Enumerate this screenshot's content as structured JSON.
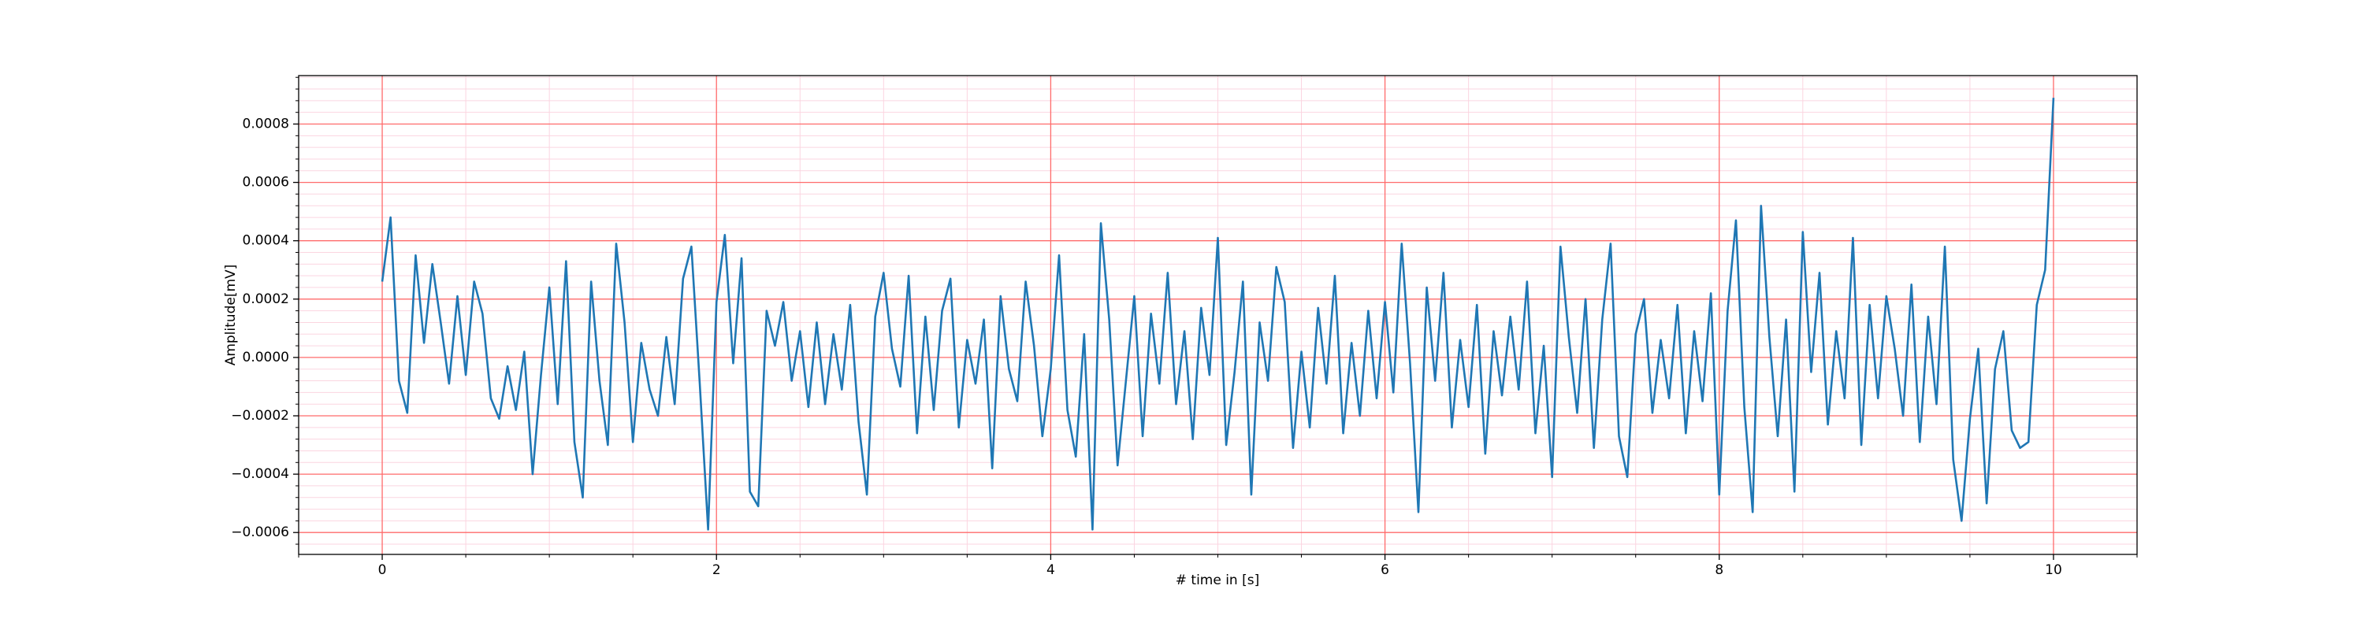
{
  "chart_data": {
    "type": "line",
    "xlabel": "# time in [s]",
    "ylabel": "Amplitude[mV]",
    "color": "#1f77b4",
    "grid": true,
    "grid_color": "#ff6b6b",
    "minor_grid_color": "#fbd5e0",
    "xlim": [
      -0.5,
      10.5
    ],
    "ylim": [
      -0.000675,
      0.000966
    ],
    "xticks": [
      0,
      2,
      4,
      6,
      8,
      10
    ],
    "yticks": [
      {
        "value": -0.0006,
        "label": "−0.0006"
      },
      {
        "value": -0.0004,
        "label": "−0.0004"
      },
      {
        "value": -0.0002,
        "label": "−0.0002"
      },
      {
        "value": 0,
        "label": "0.0000"
      },
      {
        "value": 0.0002,
        "label": "0.0002"
      },
      {
        "value": 0.0004,
        "label": "0.0004"
      },
      {
        "value": 0.0006,
        "label": "0.0006"
      },
      {
        "value": 0.0008,
        "label": "0.0008"
      }
    ],
    "xminorticks": [
      -0.5,
      0.5,
      1,
      1.5,
      2.5,
      3,
      3.5,
      4.5,
      5,
      5.5,
      6.5,
      7,
      7.5,
      8.5,
      9,
      9.5,
      10.5
    ],
    "yminorticks": [
      -0.00064,
      -0.00056,
      -0.00052,
      -0.00048,
      -0.00044,
      -0.00036,
      -0.00032,
      -0.00028,
      -0.00024,
      -0.00016,
      -0.00012,
      -8e-05,
      -4e-05,
      4e-05,
      8e-05,
      0.00012,
      0.00016,
      0.00024,
      0.00028,
      0.00032,
      0.00036,
      0.00044,
      0.00048,
      0.00052,
      0.00056,
      0.00064,
      0.00068,
      0.00072,
      0.00076,
      0.00084,
      0.00088,
      0.00092,
      0.00096
    ],
    "x": [
      0,
      0.05,
      0.1,
      0.15,
      0.2,
      0.25,
      0.3,
      0.35,
      0.4,
      0.45,
      0.5,
      0.55,
      0.6,
      0.65,
      0.7,
      0.75,
      0.8,
      0.85,
      0.9,
      0.95,
      1,
      1.05,
      1.1,
      1.15,
      1.2,
      1.25,
      1.3,
      1.35,
      1.4,
      1.45,
      1.5,
      1.55,
      1.6,
      1.65,
      1.7,
      1.75,
      1.8,
      1.85,
      1.9,
      1.95,
      2,
      2.05,
      2.1,
      2.15,
      2.2,
      2.25,
      2.3,
      2.35,
      2.4,
      2.45,
      2.5,
      2.55,
      2.6,
      2.65,
      2.7,
      2.75,
      2.8,
      2.85,
      2.9,
      2.95,
      3,
      3.05,
      3.1,
      3.15,
      3.2,
      3.25,
      3.3,
      3.35,
      3.4,
      3.45,
      3.5,
      3.55,
      3.6,
      3.65,
      3.7,
      3.75,
      3.8,
      3.85,
      3.9,
      3.95,
      4,
      4.05,
      4.1,
      4.15,
      4.2,
      4.25,
      4.3,
      4.35,
      4.4,
      4.45,
      4.5,
      4.55,
      4.6,
      4.65,
      4.7,
      4.75,
      4.8,
      4.85,
      4.9,
      4.95,
      5,
      5.05,
      5.1,
      5.15,
      5.2,
      5.25,
      5.3,
      5.35,
      5.4,
      5.45,
      5.5,
      5.55,
      5.6,
      5.65,
      5.7,
      5.75,
      5.8,
      5.85,
      5.9,
      5.95,
      6,
      6.05,
      6.1,
      6.15,
      6.2,
      6.25,
      6.3,
      6.35,
      6.4,
      6.45,
      6.5,
      6.55,
      6.6,
      6.65,
      6.7,
      6.75,
      6.8,
      6.85,
      6.9,
      6.95,
      7,
      7.05,
      7.1,
      7.15,
      7.2,
      7.25,
      7.3,
      7.35,
      7.4,
      7.45,
      7.5,
      7.55,
      7.6,
      7.65,
      7.7,
      7.75,
      7.8,
      7.85,
      7.9,
      7.95,
      8,
      8.05,
      8.1,
      8.15,
      8.2,
      8.25,
      8.3,
      8.35,
      8.4,
      8.45,
      8.5,
      8.55,
      8.6,
      8.65,
      8.7,
      8.75,
      8.8,
      8.85,
      8.9,
      8.95,
      9,
      9.05,
      9.1,
      9.15,
      9.2,
      9.25,
      9.3,
      9.35,
      9.4,
      9.45,
      9.5,
      9.55,
      9.6,
      9.65,
      9.7,
      9.75,
      9.8,
      9.85,
      9.9,
      9.95,
      10
    ],
    "values": [
      0.00026,
      0.00048,
      -8e-05,
      -0.00019,
      0.00035,
      5e-05,
      0.00032,
      0.00012,
      -9e-05,
      0.00021,
      -6e-05,
      0.00026,
      0.00015,
      -0.00014,
      -0.00021,
      -3e-05,
      -0.00018,
      2e-05,
      -0.0004,
      -6e-05,
      0.00024,
      -0.00016,
      0.00033,
      -0.00029,
      -0.00048,
      0.00026,
      -8e-05,
      -0.0003,
      0.00039,
      0.00012,
      -0.00029,
      5e-05,
      -0.00011,
      -0.0002,
      7e-05,
      -0.00016,
      0.00027,
      0.00038,
      -9e-05,
      -0.00059,
      0.00019,
      0.00042,
      -2e-05,
      0.00034,
      -0.00046,
      -0.00051,
      0.00016,
      4e-05,
      0.00019,
      -8e-05,
      9e-05,
      -0.00017,
      0.00012,
      -0.00016,
      8e-05,
      -0.00011,
      0.00018,
      -0.00022,
      -0.00047,
      0.00014,
      0.00029,
      3e-05,
      -0.0001,
      0.00028,
      -0.00026,
      0.00014,
      -0.00018,
      0.00016,
      0.00027,
      -0.00024,
      6e-05,
      -9e-05,
      0.00013,
      -0.00038,
      0.00021,
      -4e-05,
      -0.00015,
      0.00026,
      4e-05,
      -0.00027,
      -4e-05,
      0.00035,
      -0.00018,
      -0.00034,
      8e-05,
      -0.00059,
      0.00046,
      0.00013,
      -0.00037,
      -8e-05,
      0.00021,
      -0.00027,
      0.00015,
      -9e-05,
      0.00029,
      -0.00016,
      9e-05,
      -0.00028,
      0.00017,
      -6e-05,
      0.00041,
      -0.0003,
      -5e-05,
      0.00026,
      -0.00047,
      0.00012,
      -8e-05,
      0.00031,
      0.00019,
      -0.00031,
      2e-05,
      -0.00024,
      0.00017,
      -9e-05,
      0.00028,
      -0.00026,
      5e-05,
      -0.0002,
      0.00016,
      -0.00014,
      0.00019,
      -0.00012,
      0.00039,
      -2e-05,
      -0.00053,
      0.00024,
      -8e-05,
      0.00029,
      -0.00024,
      6e-05,
      -0.00017,
      0.00018,
      -0.00033,
      9e-05,
      -0.00013,
      0.00014,
      -0.00011,
      0.00026,
      -0.00026,
      4e-05,
      -0.00041,
      0.00038,
      7e-05,
      -0.00019,
      0.0002,
      -0.00031,
      0.00013,
      0.00039,
      -0.00027,
      -0.00041,
      8e-05,
      0.0002,
      -0.00019,
      6e-05,
      -0.00014,
      0.00018,
      -0.00026,
      9e-05,
      -0.00015,
      0.00022,
      -0.00047,
      0.00016,
      0.00047,
      -0.00017,
      -0.00053,
      0.00052,
      7e-05,
      -0.00027,
      0.00013,
      -0.00046,
      0.00043,
      -5e-05,
      0.00029,
      -0.00023,
      9e-05,
      -0.00014,
      0.00041,
      -0.0003,
      0.00018,
      -0.00014,
      0.00021,
      3e-05,
      -0.0002,
      0.00025,
      -0.00029,
      0.00014,
      -0.00016,
      0.00038,
      -0.00035,
      -0.00056,
      -0.00021,
      3e-05,
      -0.0005,
      -4e-05,
      9e-05,
      -0.00025,
      -0.00031,
      -0.00029,
      0.00018,
      0.0003,
      0.00089
    ]
  }
}
